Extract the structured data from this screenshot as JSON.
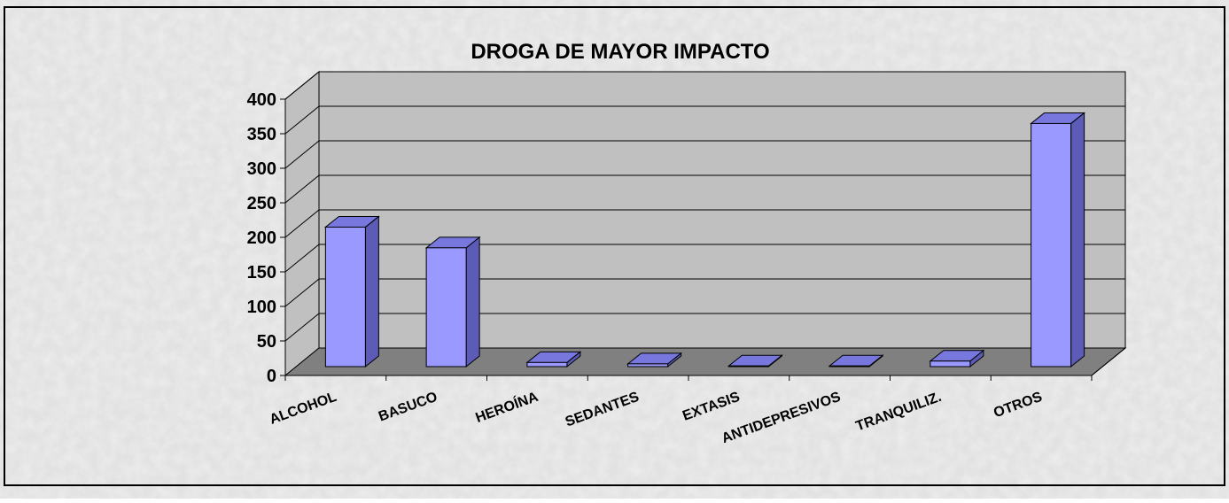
{
  "chart_data": {
    "type": "bar",
    "title": "DROGA DE MAYOR IMPACTO",
    "categories": [
      "ALCOHOL",
      "BASUCO",
      "HEROÍNA",
      "SEDANTES",
      "EXTASIS",
      "ANTIDEPRESIVOS",
      "TRANQUILIZ.",
      "OTROS"
    ],
    "values": [
      202,
      172,
      6,
      4,
      1,
      1,
      8,
      352
    ],
    "color": "#9999ff",
    "ylim": [
      0,
      400
    ],
    "yticks": [
      0,
      50,
      100,
      150,
      200,
      250,
      300,
      350,
      400
    ],
    "grid": true
  }
}
